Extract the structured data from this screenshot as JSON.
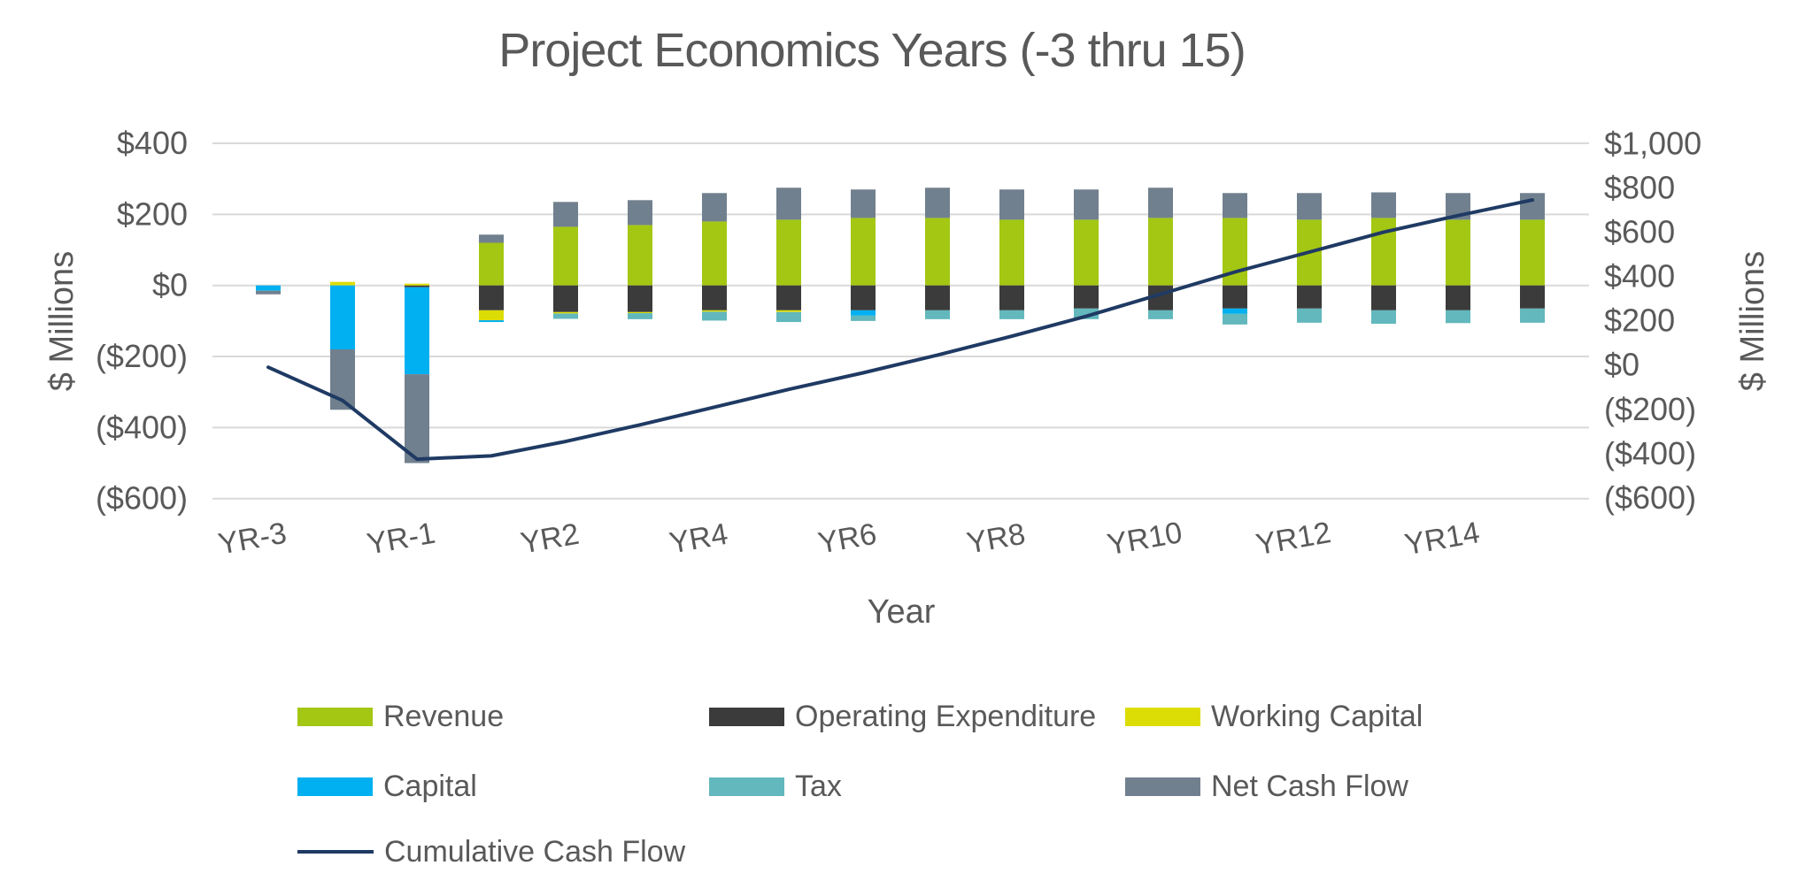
{
  "title": "Project Economics Years (-3 thru 15)",
  "colors": {
    "title_text": "#595959",
    "axis_text": "#595959",
    "gridline": "#D9D9D9",
    "background": "#FFFFFF"
  },
  "chart_data": {
    "type": "combo (stacked bar + line)",
    "title": "Project Economics Years (-3 thru 15)",
    "xlabel": "Year",
    "grid": "horizontal gridlines on",
    "categories": [
      "YR-3",
      "YR-2",
      "YR-1",
      "YR1",
      "YR2",
      "YR3",
      "YR4",
      "YR5",
      "YR6",
      "YR7",
      "YR8",
      "YR9",
      "YR10",
      "YR11",
      "YR12",
      "YR13",
      "YR14",
      "YR15"
    ],
    "x_tick_labels_shown": [
      "YR-3",
      "YR-1",
      "YR2",
      "YR4",
      "YR6",
      "YR8",
      "YR10",
      "YR12",
      "YR14"
    ],
    "x_tick_indices": [
      0,
      2,
      4,
      6,
      8,
      10,
      12,
      14,
      16
    ],
    "left_axis": {
      "title": "$ Millions",
      "tick_labels": [
        "$400",
        "$200",
        "$0",
        "($200)",
        "($400)",
        "($600)"
      ],
      "tick_values": [
        400,
        200,
        0,
        -200,
        -400,
        -600
      ],
      "range": [
        -600,
        400
      ]
    },
    "right_axis": {
      "title": "$ Millions",
      "tick_labels": [
        "$1,000",
        "$800",
        "$600",
        "$400",
        "$200",
        "$0",
        "($200)",
        "($400)",
        "($600)"
      ],
      "tick_values": [
        1000,
        800,
        600,
        400,
        200,
        0,
        -200,
        -400,
        -600
      ],
      "range": [
        -600,
        1000
      ]
    },
    "series": [
      {
        "name": "Revenue",
        "type": "bar",
        "axis": "left",
        "color": "#A3C713",
        "values": [
          0,
          0,
          0,
          120,
          165,
          170,
          180,
          185,
          190,
          190,
          185,
          185,
          190,
          190,
          185,
          190,
          185,
          185
        ]
      },
      {
        "name": "Operating Expenditure",
        "type": "bar",
        "axis": "left",
        "color": "#3B3B3B",
        "values": [
          0,
          0,
          -5,
          -70,
          -75,
          -75,
          -70,
          -70,
          -70,
          -70,
          -70,
          -65,
          -70,
          -65,
          -65,
          -70,
          -70,
          -65
        ]
      },
      {
        "name": "Working Capital",
        "type": "bar",
        "axis": "left",
        "color": "#DDDD06",
        "values": [
          0,
          10,
          5,
          -28,
          -4,
          -3,
          -4,
          -5,
          0,
          0,
          0,
          0,
          0,
          0,
          0,
          0,
          0,
          0
        ]
      },
      {
        "name": "Capital",
        "type": "bar",
        "axis": "left",
        "color": "#00B0F0",
        "values": [
          -15,
          -180,
          -245,
          -5,
          0,
          0,
          0,
          0,
          -15,
          0,
          0,
          0,
          0,
          -15,
          0,
          0,
          0,
          0
        ]
      },
      {
        "name": "Tax",
        "type": "bar",
        "axis": "left",
        "color": "#62B8BC",
        "values": [
          0,
          0,
          0,
          0,
          -15,
          -17,
          -25,
          -28,
          -15,
          -25,
          -25,
          -30,
          -25,
          -30,
          -40,
          -38,
          -36,
          -40
        ]
      },
      {
        "name": "Net Cash Flow",
        "type": "bar",
        "axis": "left",
        "color": "#71808E",
        "values": [
          -10,
          -170,
          -250,
          23,
          70,
          70,
          80,
          90,
          80,
          85,
          85,
          85,
          85,
          70,
          75,
          72,
          75,
          75
        ]
      },
      {
        "name": "Cumulative Cash Flow",
        "type": "line",
        "axis": "right",
        "color": "#1F3A63",
        "values": [
          -10,
          -160,
          -425,
          -410,
          -345,
          -270,
          -190,
          -110,
          -35,
          45,
          130,
          220,
          320,
          420,
          510,
          600,
          675,
          745
        ]
      }
    ],
    "legend": {
      "position": "bottom",
      "rows": [
        [
          "Revenue",
          "Operating Expenditure",
          "Working Capital"
        ],
        [
          "Capital",
          "Tax",
          "Net Cash Flow"
        ],
        [
          "Cumulative Cash Flow"
        ]
      ]
    }
  }
}
